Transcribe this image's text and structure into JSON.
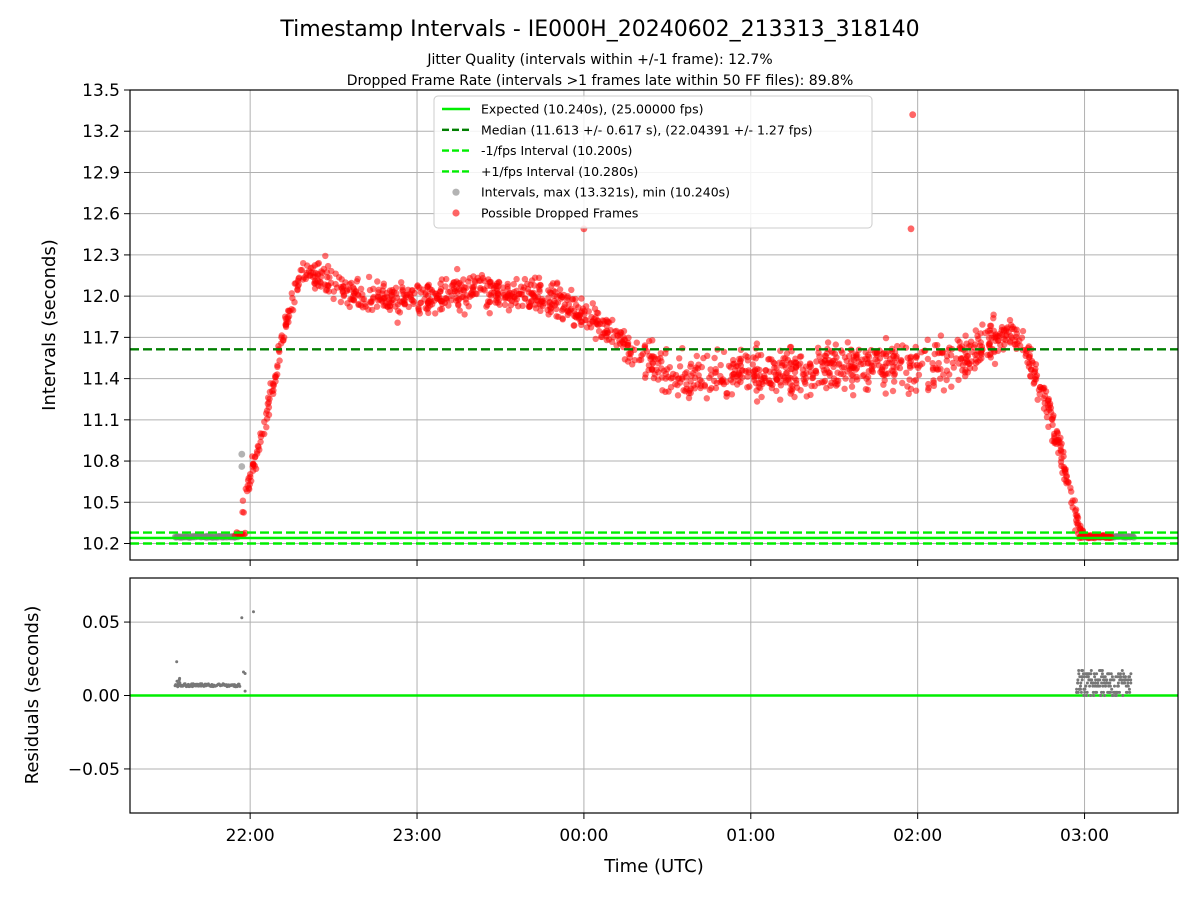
{
  "chart_data": {
    "type": "scatter",
    "title": "Timestamp Intervals - IE000H_20240602_213313_318140",
    "subtitle_lines": [
      "Jitter Quality (intervals within +/-1 frame): 12.7%",
      "Dropped Frame Rate (intervals >1 frames late within 50 FF files): 89.8%"
    ],
    "xlabel": "Time (UTC)",
    "x_ticks": [
      {
        "t": 22.0,
        "label": "22:00"
      },
      {
        "t": 23.0,
        "label": "23:00"
      },
      {
        "t": 24.0,
        "label": "00:00"
      },
      {
        "t": 25.0,
        "label": "01:00"
      },
      {
        "t": 26.0,
        "label": "02:00"
      },
      {
        "t": 27.0,
        "label": "03:00"
      }
    ],
    "xlim_hours": [
      21.28,
      27.56
    ],
    "grid": true,
    "legend_position": "upper-center",
    "panels": {
      "top": {
        "ylabel": "Intervals (seconds)",
        "ylim": [
          10.08,
          13.5
        ],
        "y_ticks": [
          "10.2",
          "10.5",
          "10.8",
          "11.1",
          "11.4",
          "11.7",
          "12.0",
          "12.3",
          "12.6",
          "12.9",
          "13.2",
          "13.5"
        ],
        "reference_lines": [
          {
            "name": "Expected (10.240s), (25.00000 fps)",
            "y": 10.24,
            "color": "#00ee00",
            "style": "solid"
          },
          {
            "name": "Median (11.613 +/- 0.617 s), (22.04391 +/- 1.27 fps)",
            "y": 11.613,
            "color": "#007f00",
            "style": "dashed"
          },
          {
            "name": "-1/fps Interval (10.200s)",
            "y": 10.2,
            "color": "#00ee00",
            "style": "dashed"
          },
          {
            "name": "+1/fps Interval (10.280s)",
            "y": 10.28,
            "color": "#00ee00",
            "style": "dashed"
          }
        ],
        "series": [
          {
            "name": "Intervals, max (13.321s), min (10.240s)",
            "color": "#808080",
            "max": 13.321,
            "min": 10.24
          },
          {
            "name": "Possible Dropped Frames",
            "color": "#ff0000"
          }
        ],
        "profile": [
          [
            21.55,
            10.25
          ],
          [
            21.93,
            10.26
          ],
          [
            21.97,
            10.55
          ],
          [
            22.05,
            10.9
          ],
          [
            22.13,
            11.3
          ],
          [
            22.22,
            11.85
          ],
          [
            22.3,
            12.15
          ],
          [
            22.45,
            12.15
          ],
          [
            22.6,
            12.0
          ],
          [
            23.0,
            11.98
          ],
          [
            23.4,
            12.05
          ],
          [
            23.9,
            11.95
          ],
          [
            24.1,
            11.8
          ],
          [
            24.3,
            11.6
          ],
          [
            24.6,
            11.4
          ],
          [
            25.0,
            11.45
          ],
          [
            25.6,
            11.48
          ],
          [
            26.0,
            11.5
          ],
          [
            26.3,
            11.55
          ],
          [
            26.55,
            11.75
          ],
          [
            26.65,
            11.6
          ],
          [
            26.75,
            11.3
          ],
          [
            26.85,
            10.9
          ],
          [
            26.93,
            10.5
          ],
          [
            26.98,
            10.25
          ],
          [
            27.3,
            10.25
          ]
        ],
        "notable_points": [
          {
            "x": 25.97,
            "y": 13.32
          },
          {
            "x": 25.96,
            "y": 12.49
          },
          {
            "x": 24.0,
            "y": 12.49
          },
          {
            "x": 21.95,
            "y": 10.85
          },
          {
            "x": 21.95,
            "y": 10.76
          }
        ]
      },
      "bottom": {
        "ylabel": "Residuals (seconds)",
        "ylim": [
          -0.08,
          0.08
        ],
        "y_ticks": [
          "−0.05",
          "0.00",
          "0.05"
        ],
        "zero_line_color": "#00ee00",
        "clusters": [
          {
            "x_range": [
              21.55,
              21.94
            ],
            "y_range": [
              0.006,
              0.008
            ],
            "color": "#808080"
          },
          {
            "x_range": [
              26.95,
              27.28
            ],
            "y_range": [
              0.0,
              0.017
            ],
            "color": "#808080"
          }
        ],
        "notable_points": [
          {
            "x": 21.56,
            "y": 0.023
          },
          {
            "x": 21.95,
            "y": 0.053
          },
          {
            "x": 22.02,
            "y": 0.057
          },
          {
            "x": 21.96,
            "y": 0.016
          },
          {
            "x": 21.97,
            "y": 0.015
          },
          {
            "x": 21.97,
            "y": 0.003
          }
        ]
      }
    }
  }
}
